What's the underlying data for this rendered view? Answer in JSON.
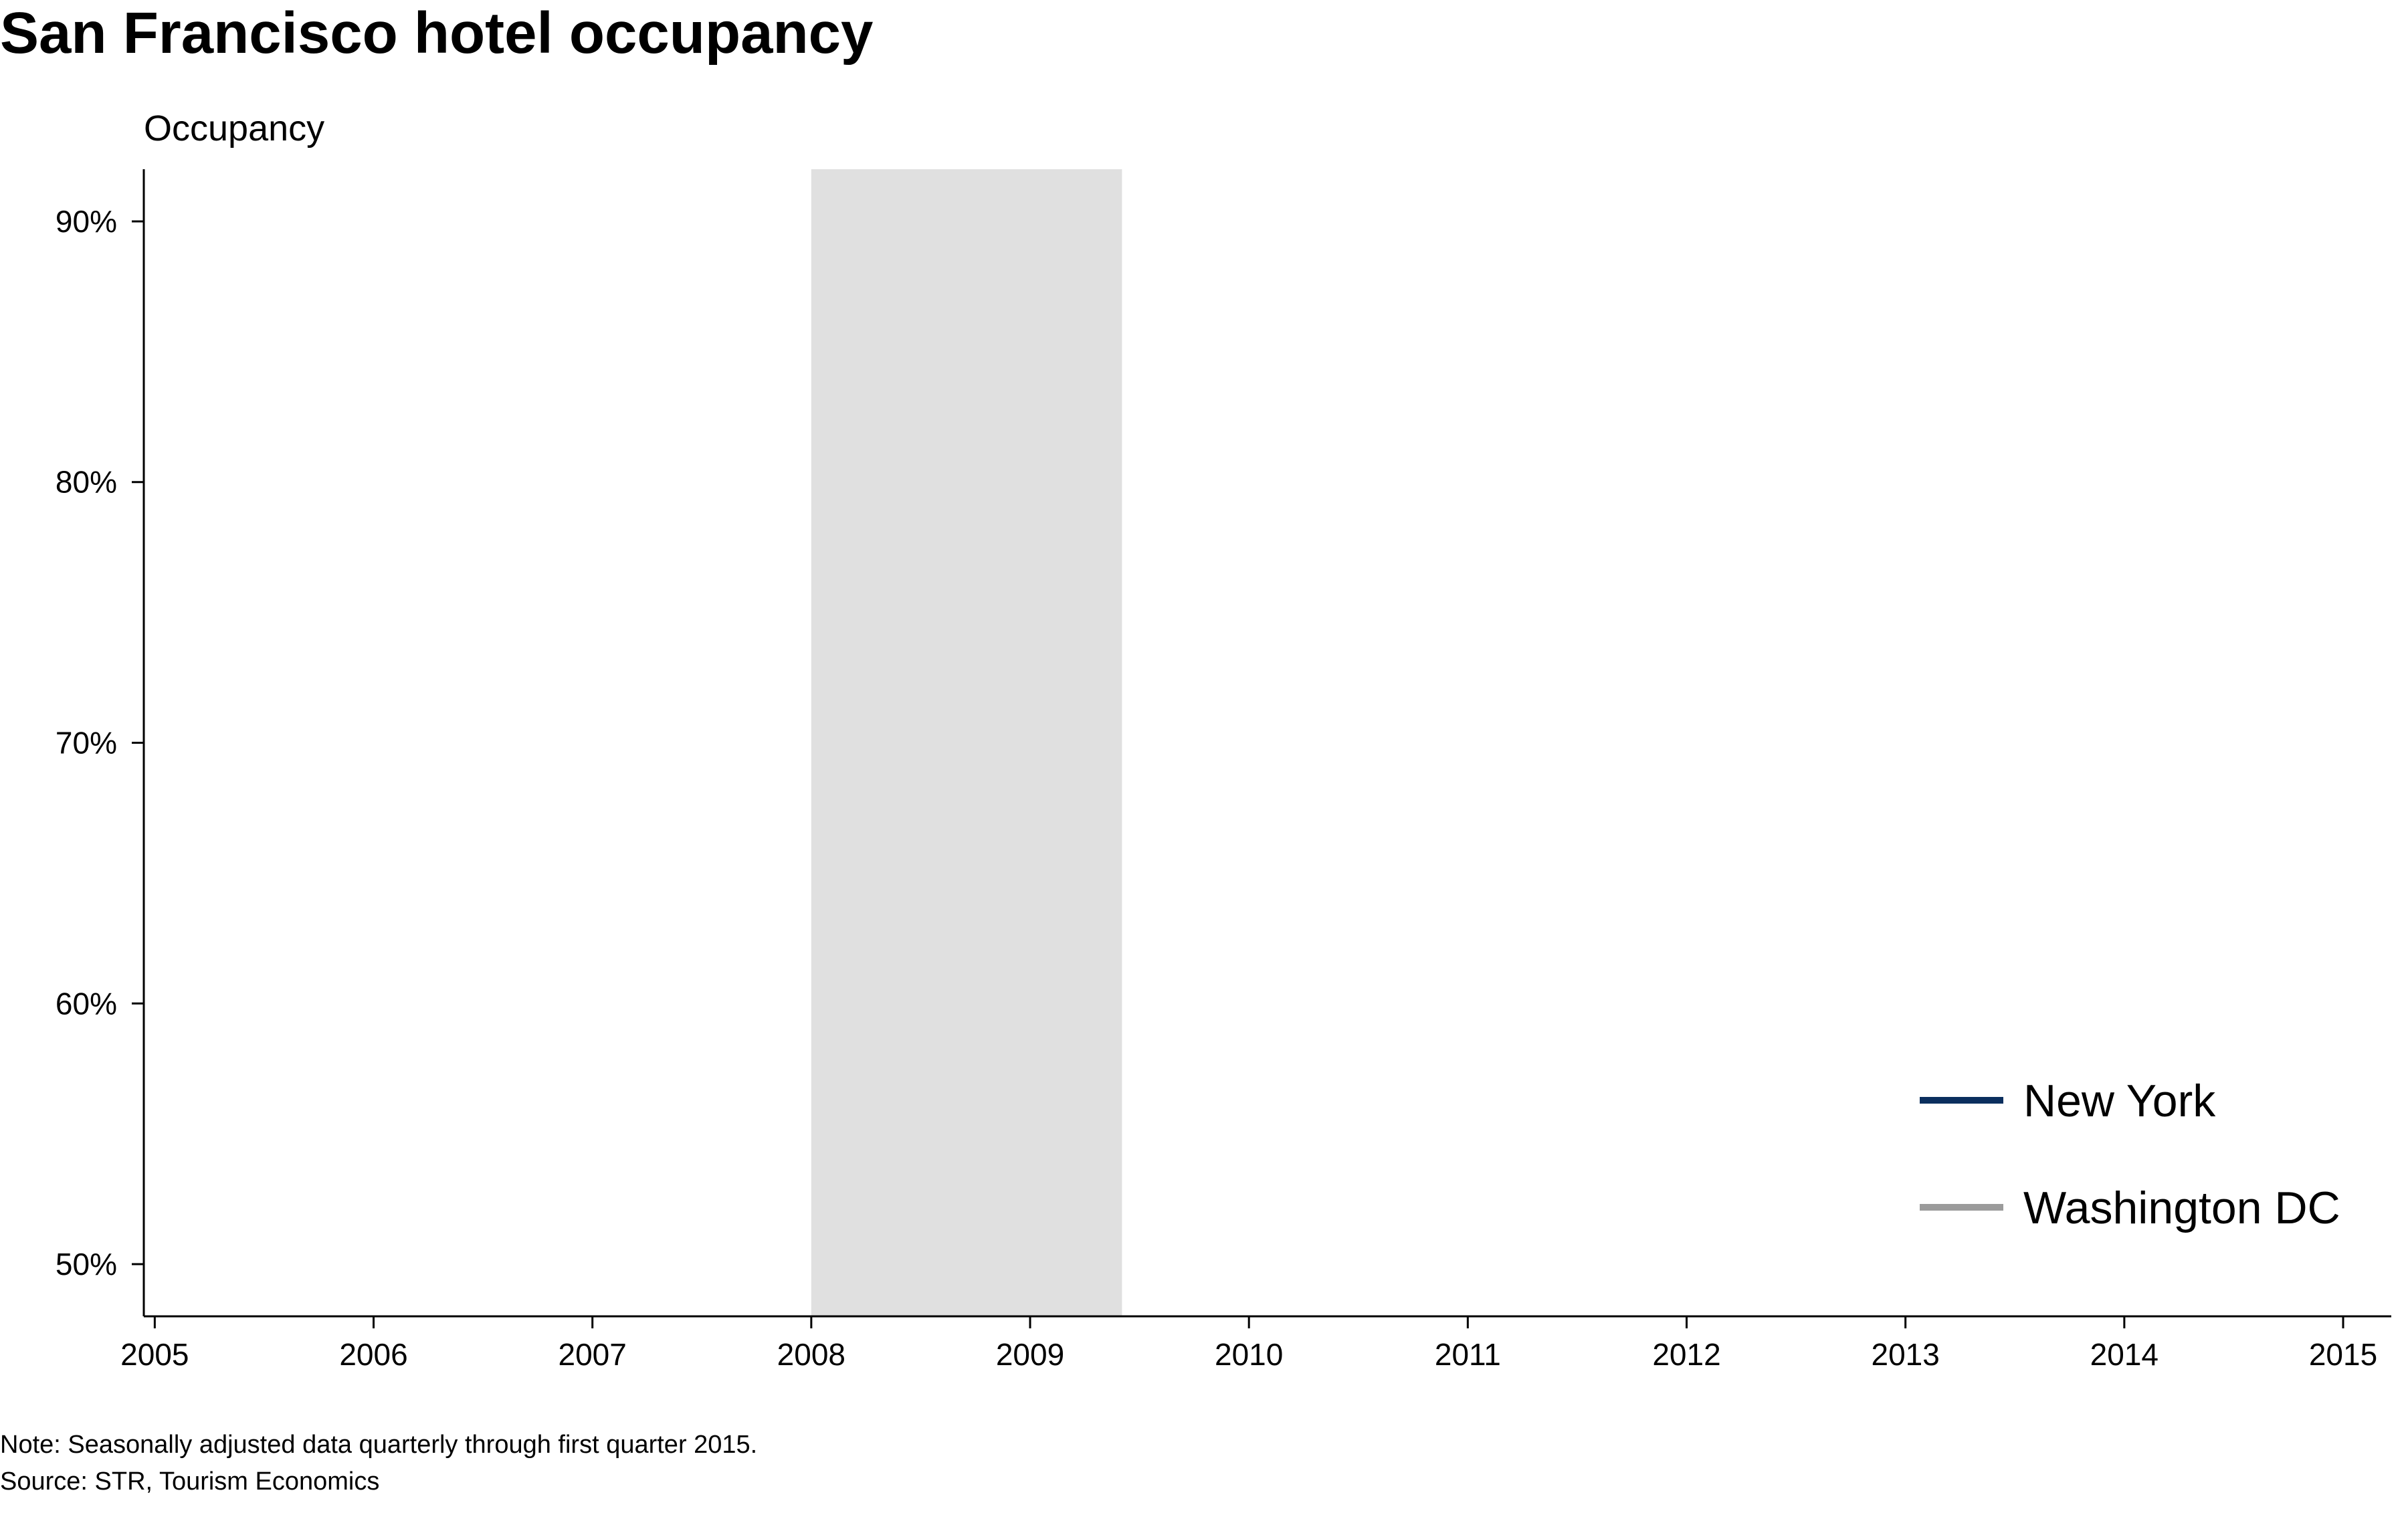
{
  "chart_data": {
    "type": "line",
    "title": "San Francisco hotel occupancy",
    "ylabel": "Occupancy",
    "xlabel": "",
    "xlim": [
      2004.95,
      2015.22
    ],
    "ylim": [
      48,
      92
    ],
    "y_ticks": [
      {
        "value": 50,
        "label": "50%"
      },
      {
        "value": 60,
        "label": "60%"
      },
      {
        "value": 70,
        "label": "70%"
      },
      {
        "value": 80,
        "label": "80%"
      },
      {
        "value": 90,
        "label": "90%"
      }
    ],
    "x_ticks": [
      {
        "value": 2005,
        "label": "2005"
      },
      {
        "value": 2006,
        "label": "2006"
      },
      {
        "value": 2007,
        "label": "2007"
      },
      {
        "value": 2008,
        "label": "2008"
      },
      {
        "value": 2009,
        "label": "2009"
      },
      {
        "value": 2010,
        "label": "2010"
      },
      {
        "value": 2011,
        "label": "2011"
      },
      {
        "value": 2012,
        "label": "2012"
      },
      {
        "value": 2013,
        "label": "2013"
      },
      {
        "value": 2014,
        "label": "2014"
      },
      {
        "value": 2015,
        "label": "2015"
      }
    ],
    "shaded_band": {
      "x_start": 2008.0,
      "x_end": 2009.42,
      "color": "#e0e0e0"
    },
    "series": [
      {
        "name": "New York",
        "color": "#0b2f5e",
        "values": []
      },
      {
        "name": "Washington DC",
        "color": "#9b9b9b",
        "values": []
      }
    ],
    "legend_position": "bottom-right",
    "grid": false,
    "note": "Note: Seasonally adjusted data quarterly through first quarter 2015.",
    "source": "Source: STR, Tourism Economics"
  }
}
